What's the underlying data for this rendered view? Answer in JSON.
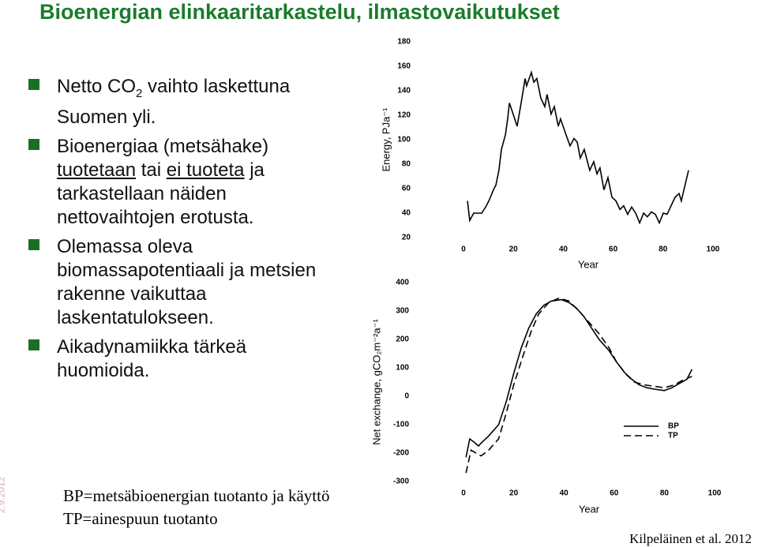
{
  "slide": {
    "title": "Bioenergian elinkaaritarkastelu, ilmastovaikutukset",
    "bullets": [
      [
        "Netto CO",
        "2",
        " vaihto laskettuna Suomen yli."
      ],
      [
        "Bioenergiaa (metsähake) ",
        "tuotetaan",
        " tai ",
        "ei tuoteta",
        " ja tarkastellaan näiden nettovaihtojen erotusta."
      ],
      [
        "Olemassa oleva biomassapotentiaali ja metsien rakenne vaikuttaa laskentatulokseen."
      ],
      [
        "Aikadynamiikka tärkeä huomioida."
      ]
    ],
    "notes": [
      "BP=metsäbioenergian tuotanto ja käyttö",
      "TP=ainespuun tuotanto"
    ],
    "date": "2.9.2012",
    "source": "Kilpeläinen et al. 2012"
  },
  "chart_data": [
    {
      "type": "line",
      "xlabel": "Year",
      "ylabel": "Energy, PJa⁻¹",
      "xlim": [
        0,
        100
      ],
      "xticks": [
        0,
        20,
        40,
        60,
        80,
        100
      ],
      "ylim": [
        20,
        180
      ],
      "yticks": [
        20,
        40,
        60,
        80,
        100,
        120,
        140,
        160,
        180
      ],
      "series": [
        {
          "color": "#000000",
          "x": [
            1.6,
            2.5,
            4.1,
            7.3,
            8.9,
            10.4,
            12,
            13,
            14.2,
            15.2,
            16.8,
            17.7,
            18.4,
            19.9,
            21.5,
            23.1,
            24.7,
            25.3,
            27.2,
            28.2,
            29.4,
            31,
            32.6,
            33.5,
            35.1,
            36.4,
            38,
            38.9,
            41.1,
            42.7,
            44.3,
            45.6,
            46.8,
            48.4,
            50.6,
            52.2,
            53.5,
            54.7,
            56.3,
            57.9,
            59.5,
            61.1,
            62.7,
            64.2,
            65.8,
            67.4,
            69,
            70.6,
            72.2,
            73.7,
            75.3,
            76.9,
            78.5,
            80.1,
            81.6,
            83.2,
            84.8,
            86.4,
            87.3,
            90.2
          ],
          "values": [
            50,
            34,
            40,
            40,
            45,
            51,
            59,
            63,
            75,
            92,
            104,
            117,
            130,
            121,
            111,
            130,
            150,
            144,
            155,
            147,
            150,
            134,
            127,
            137,
            121,
            127,
            111,
            117,
            104,
            95,
            101,
            98,
            85,
            92,
            75,
            82,
            72,
            77,
            59,
            69,
            53,
            50,
            43,
            46,
            39,
            45,
            40,
            32,
            40,
            37,
            41,
            39,
            32,
            40,
            39,
            46,
            53,
            56,
            50,
            75
          ]
        }
      ]
    },
    {
      "type": "line",
      "xlabel": "Year",
      "ylabel": "Net exchange, gCO₂m⁻²a⁻¹",
      "xlim": [
        0,
        100
      ],
      "xticks": [
        0,
        20,
        40,
        60,
        80,
        100
      ],
      "ylim": [
        -300,
        400
      ],
      "yticks": [
        -300,
        -200,
        -100,
        0,
        100,
        200,
        300,
        400
      ],
      "legend": "lower right",
      "series": [
        {
          "name": "BP",
          "color": "#000000",
          "dash": false,
          "x": [
            1,
            2.5,
            4,
            6,
            7,
            10,
            14,
            17,
            20,
            23,
            26,
            29,
            32,
            35,
            39,
            42,
            45,
            48,
            51,
            54,
            58,
            61,
            64,
            67,
            70,
            73,
            76,
            80,
            83,
            86,
            89,
            91
          ],
          "values": [
            -215,
            -150,
            -160,
            -175,
            -165,
            -140,
            -100,
            -20,
            80,
            170,
            240,
            290,
            320,
            335,
            340,
            330,
            310,
            280,
            240,
            200,
            160,
            120,
            85,
            60,
            40,
            30,
            25,
            20,
            30,
            45,
            60,
            95
          ]
        },
        {
          "name": "TP",
          "color": "#000000",
          "dash": true,
          "x": [
            1,
            3,
            7,
            10,
            14,
            17,
            20,
            24,
            27,
            30,
            34,
            38,
            42,
            46,
            50,
            54,
            58,
            61,
            65,
            68,
            72,
            76,
            80,
            84,
            87,
            91
          ],
          "values": [
            -270,
            -190,
            -210,
            -190,
            -150,
            -60,
            40,
            150,
            230,
            290,
            330,
            345,
            335,
            300,
            260,
            220,
            170,
            120,
            75,
            50,
            40,
            35,
            30,
            40,
            55,
            70
          ]
        }
      ]
    }
  ]
}
